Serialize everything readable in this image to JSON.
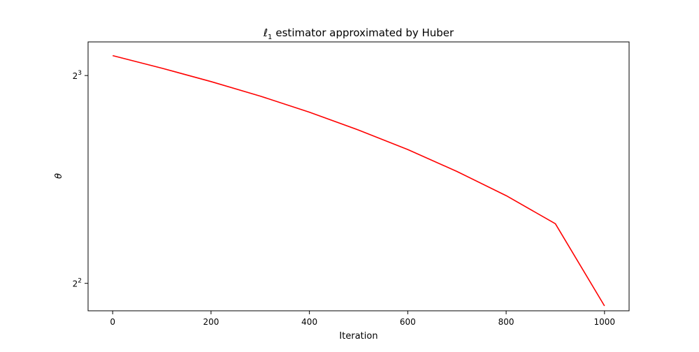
{
  "chart_data": {
    "type": "line",
    "title": {
      "main": "estimator approximated by Huber",
      "ell_symbol": "ℓ",
      "ell_subscript": "1"
    },
    "xlabel": "Iteration",
    "ylabel": "θ",
    "xlim": [
      -50,
      1050
    ],
    "ylim": [
      3.65,
      8.95
    ],
    "yscale": "log2",
    "grid": false,
    "xticks": [
      {
        "value": 0,
        "label": "0"
      },
      {
        "value": 200,
        "label": "200"
      },
      {
        "value": 400,
        "label": "400"
      },
      {
        "value": 600,
        "label": "600"
      },
      {
        "value": 800,
        "label": "800"
      },
      {
        "value": 1000,
        "label": "1000"
      }
    ],
    "yticks": [
      {
        "value": 4,
        "base": "2",
        "exp": "2"
      },
      {
        "value": 8,
        "base": "2",
        "exp": "3"
      }
    ],
    "series": [
      {
        "color": "#ff0000",
        "x": [
          0,
          100,
          200,
          300,
          400,
          500,
          600,
          700,
          800,
          900,
          1000
        ],
        "y": [
          8.55,
          8.2,
          7.84,
          7.47,
          7.08,
          6.67,
          6.25,
          5.81,
          5.36,
          4.88,
          3.71
        ]
      }
    ]
  }
}
